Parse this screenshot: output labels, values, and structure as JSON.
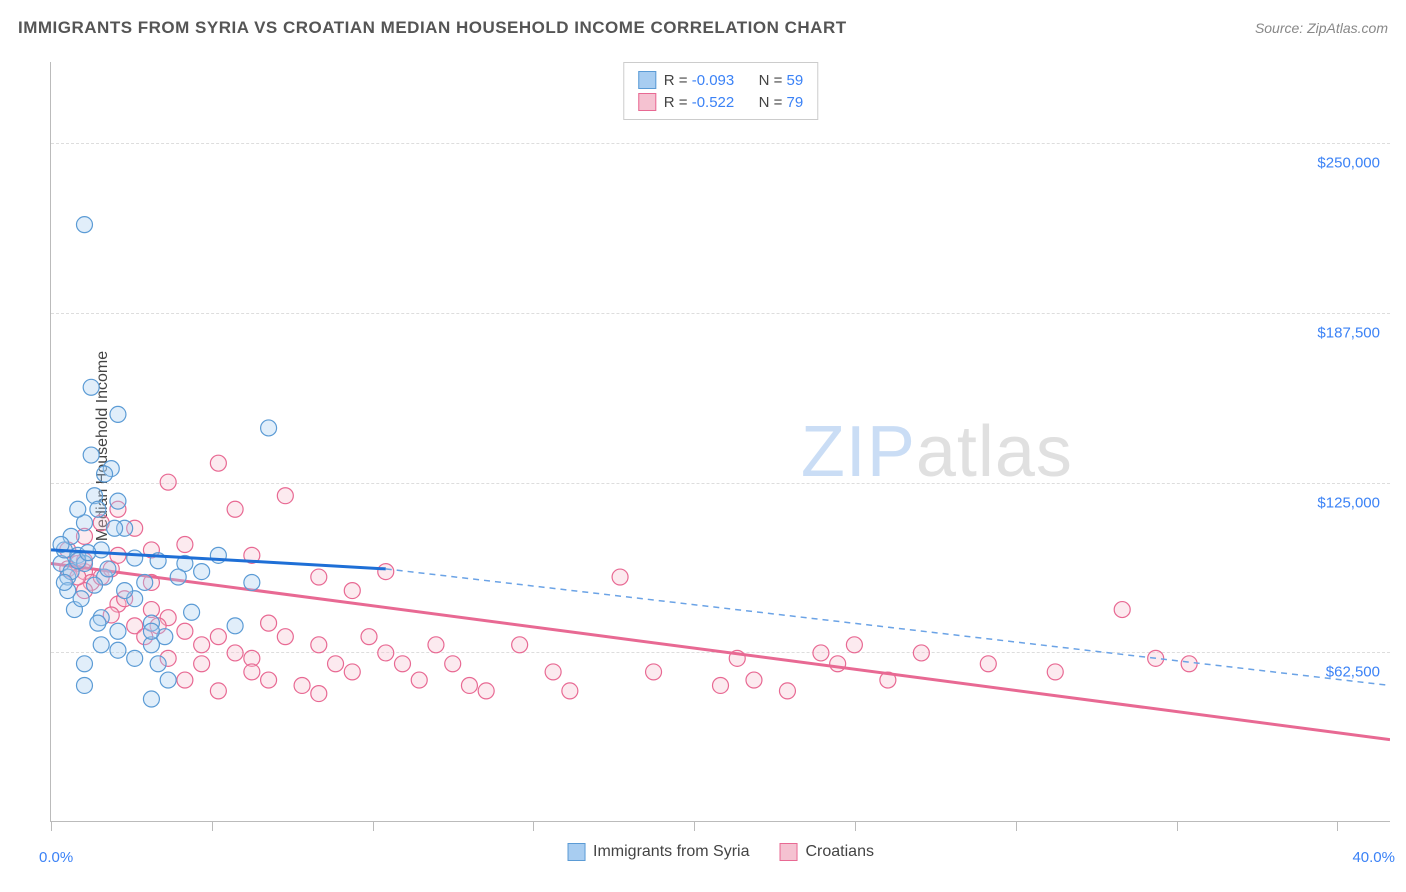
{
  "title": "IMMIGRANTS FROM SYRIA VS CROATIAN MEDIAN HOUSEHOLD INCOME CORRELATION CHART",
  "source_label": "Source: ZipAtlas.com",
  "ylabel": "Median Household Income",
  "watermark_zip": "ZIP",
  "watermark_atlas": "atlas",
  "chart": {
    "type": "scatter",
    "xlim": [
      0,
      40
    ],
    "ylim": [
      0,
      280000
    ],
    "x_axis_unit": "%",
    "y_axis_unit": "$",
    "xtick_min_label": "0.0%",
    "xtick_max_label": "40.0%",
    "xtick_color": "#3b82f6",
    "xtick_positions_pct": [
      0,
      12,
      24,
      36,
      48,
      60,
      72,
      84,
      96
    ],
    "yticks": [
      {
        "value": 62500,
        "label": "$62,500"
      },
      {
        "value": 125000,
        "label": "$125,000"
      },
      {
        "value": 187500,
        "label": "$187,500"
      },
      {
        "value": 250000,
        "label": "$250,000"
      }
    ],
    "ytick_color": "#3b82f6",
    "grid_color": "#dddddd",
    "background_color": "#ffffff",
    "marker_radius": 8,
    "marker_stroke_width": 1.2,
    "marker_fill_opacity": 0.35,
    "series": [
      {
        "name": "Immigrants from Syria",
        "color_fill": "#a8cdf1",
        "color_stroke": "#5b9bd5",
        "R": "-0.093",
        "N": "59",
        "regression_line": {
          "x1": 0,
          "y1": 100000,
          "x2": 10,
          "y2": 93000,
          "extend_to_x": 40,
          "extend_y": 50000,
          "solid_color": "#1e6fd6",
          "dash_color": "#6ba3e6",
          "stroke_width": 3
        },
        "points": [
          [
            0.3,
            95000
          ],
          [
            0.4,
            100000
          ],
          [
            0.5,
            90000
          ],
          [
            0.6,
            105000
          ],
          [
            0.8,
            98000
          ],
          [
            1.0,
            110000
          ],
          [
            1.2,
            135000
          ],
          [
            1.3,
            120000
          ],
          [
            1.5,
            100000
          ],
          [
            1.6,
            90000
          ],
          [
            1.8,
            130000
          ],
          [
            2.0,
            150000
          ],
          [
            0.5,
            85000
          ],
          [
            0.7,
            78000
          ],
          [
            1.0,
            95000
          ],
          [
            1.4,
            115000
          ],
          [
            1.6,
            128000
          ],
          [
            2.0,
            118000
          ],
          [
            2.2,
            108000
          ],
          [
            2.5,
            97000
          ],
          [
            2.8,
            88000
          ],
          [
            3.0,
            73000
          ],
          [
            3.2,
            96000
          ],
          [
            3.4,
            68000
          ],
          [
            1.0,
            220000
          ],
          [
            1.2,
            160000
          ],
          [
            0.8,
            115000
          ],
          [
            4.0,
            95000
          ],
          [
            4.5,
            92000
          ],
          [
            5.0,
            98000
          ],
          [
            6.0,
            88000
          ],
          [
            6.5,
            145000
          ],
          [
            1.5,
            75000
          ],
          [
            2.0,
            70000
          ],
          [
            2.5,
            82000
          ],
          [
            3.8,
            90000
          ],
          [
            1.0,
            58000
          ],
          [
            1.0,
            50000
          ],
          [
            1.5,
            65000
          ],
          [
            2.0,
            63000
          ],
          [
            2.5,
            60000
          ],
          [
            3.0,
            65000
          ],
          [
            0.3,
            102000
          ],
          [
            0.6,
            92000
          ],
          [
            0.4,
            88000
          ],
          [
            0.8,
            96000
          ],
          [
            1.1,
            99000
          ],
          [
            1.3,
            87000
          ],
          [
            1.7,
            93000
          ],
          [
            3.0,
            45000
          ],
          [
            3.5,
            52000
          ],
          [
            2.2,
            85000
          ],
          [
            4.2,
            77000
          ],
          [
            5.5,
            72000
          ],
          [
            1.9,
            108000
          ],
          [
            0.9,
            82000
          ],
          [
            1.4,
            73000
          ],
          [
            3.2,
            58000
          ],
          [
            3.0,
            70000
          ]
        ]
      },
      {
        "name": "Croatians",
        "color_fill": "#f5c2d1",
        "color_stroke": "#e86993",
        "R": "-0.522",
        "N": "79",
        "regression_line": {
          "x1": 0,
          "y1": 95000,
          "x2": 40,
          "y2": 30000,
          "solid_color": "#e86993",
          "stroke_width": 3
        },
        "points": [
          [
            0.5,
            100000
          ],
          [
            0.8,
            95000
          ],
          [
            1.0,
            92000
          ],
          [
            1.2,
            88000
          ],
          [
            1.5,
            90000
          ],
          [
            1.8,
            93000
          ],
          [
            2.0,
            115000
          ],
          [
            2.5,
            108000
          ],
          [
            3.0,
            100000
          ],
          [
            3.5,
            125000
          ],
          [
            4.0,
            102000
          ],
          [
            5.0,
            132000
          ],
          [
            5.5,
            115000
          ],
          [
            6.0,
            98000
          ],
          [
            7.0,
            120000
          ],
          [
            8.0,
            90000
          ],
          [
            9.0,
            85000
          ],
          [
            10.0,
            92000
          ],
          [
            2.0,
            80000
          ],
          [
            2.5,
            72000
          ],
          [
            3.0,
            78000
          ],
          [
            3.5,
            75000
          ],
          [
            4.0,
            70000
          ],
          [
            4.5,
            65000
          ],
          [
            5.0,
            68000
          ],
          [
            5.5,
            62000
          ],
          [
            6.0,
            60000
          ],
          [
            6.5,
            73000
          ],
          [
            7.0,
            68000
          ],
          [
            8.0,
            65000
          ],
          [
            8.5,
            58000
          ],
          [
            9.0,
            55000
          ],
          [
            10.0,
            62000
          ],
          [
            11.0,
            52000
          ],
          [
            11.5,
            65000
          ],
          [
            12.0,
            58000
          ],
          [
            13.0,
            48000
          ],
          [
            14.0,
            65000
          ],
          [
            15.0,
            55000
          ],
          [
            17.0,
            90000
          ],
          [
            20.0,
            50000
          ],
          [
            21.0,
            52000
          ],
          [
            22.0,
            48000
          ],
          [
            23.0,
            62000
          ],
          [
            24.0,
            65000
          ],
          [
            28.0,
            58000
          ],
          [
            32.0,
            78000
          ],
          [
            33.0,
            60000
          ],
          [
            34.0,
            58000
          ],
          [
            1.0,
            105000
          ],
          [
            1.5,
            110000
          ],
          [
            2.0,
            98000
          ],
          [
            3.0,
            88000
          ],
          [
            4.0,
            52000
          ],
          [
            5.0,
            48000
          ],
          [
            6.0,
            55000
          ],
          [
            3.5,
            60000
          ],
          [
            4.5,
            58000
          ],
          [
            1.0,
            85000
          ],
          [
            1.8,
            76000
          ],
          [
            2.2,
            82000
          ],
          [
            2.8,
            68000
          ],
          [
            3.2,
            72000
          ],
          [
            0.5,
            93000
          ],
          [
            0.8,
            90000
          ],
          [
            1.0,
            96000
          ],
          [
            6.5,
            52000
          ],
          [
            7.5,
            50000
          ],
          [
            8.0,
            47000
          ],
          [
            9.5,
            68000
          ],
          [
            10.5,
            58000
          ],
          [
            12.5,
            50000
          ],
          [
            15.5,
            48000
          ],
          [
            18.0,
            55000
          ],
          [
            25.0,
            52000
          ],
          [
            26.0,
            62000
          ],
          [
            30.0,
            55000
          ],
          [
            20.5,
            60000
          ],
          [
            23.5,
            58000
          ]
        ]
      }
    ]
  },
  "legend_top": {
    "r_label": "R =",
    "n_label": "N ="
  },
  "legend_bottom": {
    "items": [
      {
        "label": "Immigrants from Syria",
        "fill": "#a8cdf1",
        "stroke": "#5b9bd5"
      },
      {
        "label": "Croatians",
        "fill": "#f5c2d1",
        "stroke": "#e86993"
      }
    ]
  }
}
